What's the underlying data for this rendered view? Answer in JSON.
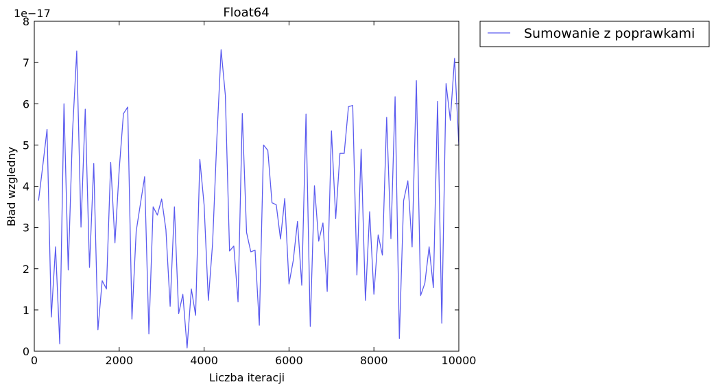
{
  "chart_data": {
    "type": "line",
    "title": "Float64",
    "xlabel": "Liczba iteracji",
    "ylabel": "Bład wzgledny",
    "y_offset_label": "1e−17",
    "xlim": [
      0,
      10000
    ],
    "ylim": [
      0,
      8
    ],
    "x_ticks": [
      0,
      2000,
      4000,
      6000,
      8000,
      10000
    ],
    "x_tick_labels": [
      "0",
      "2000",
      "4000",
      "6000",
      "8000",
      "10000"
    ],
    "y_ticks": [
      0,
      1,
      2,
      3,
      4,
      5,
      6,
      7,
      8
    ],
    "y_tick_labels": [
      "0",
      "1",
      "2",
      "3",
      "4",
      "5",
      "6",
      "7",
      "8"
    ],
    "grid": false,
    "legend_position": "outside-top-right",
    "series": [
      {
        "name": "Sumowanie z poprawkami",
        "color": "#5b5bef",
        "x": [
          100,
          200,
          300,
          400,
          500,
          600,
          700,
          800,
          900,
          1000,
          1100,
          1200,
          1300,
          1400,
          1500,
          1600,
          1700,
          1800,
          1900,
          2000,
          2100,
          2200,
          2300,
          2400,
          2500,
          2600,
          2700,
          2800,
          2900,
          3000,
          3100,
          3200,
          3300,
          3400,
          3500,
          3600,
          3700,
          3800,
          3900,
          4000,
          4100,
          4200,
          4300,
          4400,
          4500,
          4600,
          4700,
          4800,
          4900,
          5000,
          5100,
          5200,
          5300,
          5400,
          5500,
          5600,
          5700,
          5800,
          5900,
          6000,
          6100,
          6200,
          6300,
          6400,
          6500,
          6600,
          6700,
          6800,
          6900,
          7000,
          7100,
          7200,
          7300,
          7400,
          7500,
          7600,
          7700,
          7800,
          7900,
          8000,
          8100,
          8200,
          8300,
          8400,
          8500,
          8600,
          8700,
          8800,
          8900,
          9000,
          9100,
          9200,
          9300,
          9400,
          9500,
          9600,
          9700,
          9800,
          9900,
          10000
        ],
        "y": [
          3.65,
          4.5,
          5.38,
          0.83,
          2.53,
          0.18,
          6.0,
          1.97,
          5.3,
          7.28,
          3.01,
          5.87,
          2.03,
          4.55,
          0.52,
          1.71,
          1.51,
          4.58,
          2.63,
          4.4,
          5.76,
          5.92,
          0.78,
          2.91,
          3.58,
          4.23,
          0.42,
          3.5,
          3.3,
          3.69,
          2.95,
          1.09,
          3.5,
          0.91,
          1.38,
          0.08,
          1.51,
          0.87,
          4.65,
          3.55,
          1.23,
          2.62,
          5.15,
          7.31,
          6.2,
          2.43,
          2.55,
          1.2,
          5.76,
          2.88,
          2.41,
          2.45,
          0.63,
          5.0,
          4.87,
          3.6,
          3.55,
          2.72,
          3.7,
          1.63,
          2.2,
          3.15,
          1.6,
          5.75,
          0.6,
          4.01,
          2.67,
          3.11,
          1.45,
          5.34,
          3.22,
          4.8,
          4.8,
          5.93,
          5.96,
          1.85,
          4.9,
          1.23,
          3.38,
          1.38,
          2.82,
          2.33,
          5.67,
          2.73,
          6.17,
          0.31,
          3.65,
          4.13,
          2.53,
          6.56,
          1.35,
          1.65,
          2.53,
          1.54,
          6.06,
          0.68,
          6.49,
          5.6,
          7.1,
          5.0
        ]
      }
    ]
  }
}
